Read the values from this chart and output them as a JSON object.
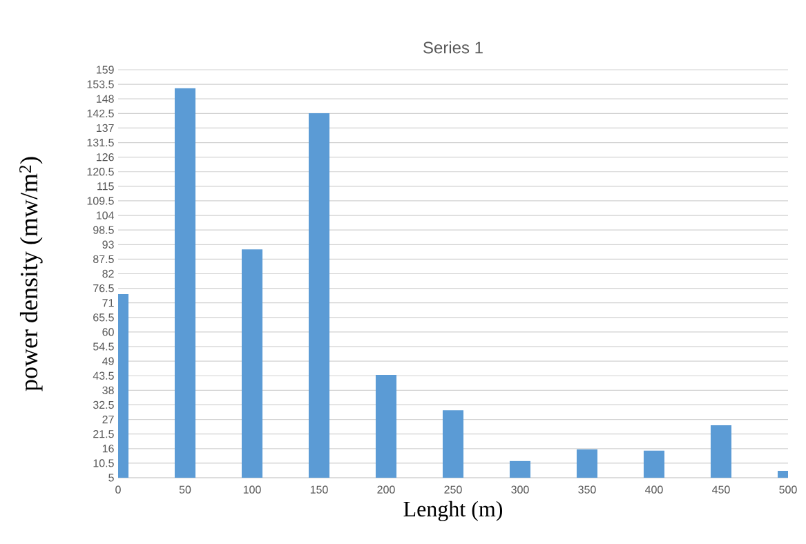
{
  "chart_data": {
    "type": "bar",
    "title": "Series 1",
    "xlabel": "Lenght (m)",
    "ylabel": "power density (mw/m$^{2}$)",
    "x": [
      0,
      50,
      100,
      150,
      200,
      250,
      300,
      350,
      400,
      450,
      500
    ],
    "values": [
      74.3,
      152,
      91.2,
      142.6,
      43.8,
      30.5,
      11.3,
      15.7,
      15.2,
      24.8,
      7.6
    ],
    "color": "#5b9bd5",
    "xlim": [
      0,
      500
    ],
    "xticks": [
      0,
      50,
      100,
      150,
      200,
      250,
      300,
      350,
      400,
      450,
      500
    ],
    "ylim": [
      5,
      159
    ],
    "yticks": [
      5,
      10.5,
      16,
      21.5,
      27,
      32.5,
      38,
      43.5,
      49,
      54.5,
      60,
      65.5,
      71,
      76.5,
      82,
      87.5,
      93,
      98.5,
      104,
      109.5,
      115,
      120.5,
      126,
      131.5,
      137,
      142.5,
      148,
      153.5,
      159
    ],
    "grid": "y"
  }
}
